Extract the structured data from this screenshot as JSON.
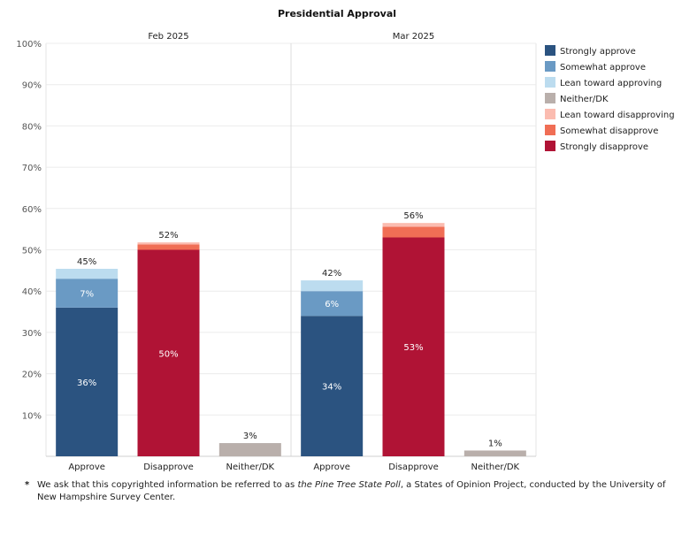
{
  "chart_data": {
    "type": "bar",
    "stacked": true,
    "title": "Presidential Approval",
    "panels": [
      "Feb 2025",
      "Mar 2025"
    ],
    "categories": [
      "Approve",
      "Disapprove",
      "Neither/DK"
    ],
    "ylim": [
      0,
      100
    ],
    "yticks": [
      10,
      20,
      30,
      40,
      50,
      60,
      70,
      80,
      90,
      100
    ],
    "ytick_labels": [
      "10%",
      "20%",
      "30%",
      "40%",
      "50%",
      "60%",
      "70%",
      "80%",
      "90%",
      "100%"
    ],
    "legend": [
      {
        "name": "Strongly approve",
        "color": "#2b5380"
      },
      {
        "name": "Somewhat approve",
        "color": "#6a9ac4"
      },
      {
        "name": "Lean toward approving",
        "color": "#bcdcef"
      },
      {
        "name": "Neither/DK",
        "color": "#b9afab"
      },
      {
        "name": "Lean toward disapproving",
        "color": "#fbbcb0"
      },
      {
        "name": "Somewhat disapprove",
        "color": "#f06e55"
      },
      {
        "name": "Strongly disapprove",
        "color": "#b01335"
      }
    ],
    "bars": [
      {
        "panel": 0,
        "category": "Approve",
        "total_label": "45%",
        "segments": [
          {
            "series": "Strongly approve",
            "value": 36,
            "label": "36%"
          },
          {
            "series": "Somewhat approve",
            "value": 7,
            "label": "7%"
          },
          {
            "series": "Lean toward approving",
            "value": 2.4,
            "label": ""
          }
        ]
      },
      {
        "panel": 0,
        "category": "Disapprove",
        "total_label": "52%",
        "segments": [
          {
            "series": "Strongly disapprove",
            "value": 50,
            "label": "50%"
          },
          {
            "series": "Somewhat disapprove",
            "value": 1.3,
            "label": ""
          },
          {
            "series": "Lean toward disapproving",
            "value": 0.5,
            "label": ""
          }
        ]
      },
      {
        "panel": 0,
        "category": "Neither/DK",
        "total_label": "3%",
        "segments": [
          {
            "series": "Neither/DK",
            "value": 3.2,
            "label": ""
          }
        ]
      },
      {
        "panel": 1,
        "category": "Approve",
        "total_label": "42%",
        "segments": [
          {
            "series": "Strongly approve",
            "value": 34,
            "label": "34%"
          },
          {
            "series": "Somewhat approve",
            "value": 6,
            "label": "6%"
          },
          {
            "series": "Lean toward approving",
            "value": 2.6,
            "label": ""
          }
        ]
      },
      {
        "panel": 1,
        "category": "Disapprove",
        "total_label": "56%",
        "segments": [
          {
            "series": "Strongly disapprove",
            "value": 53,
            "label": "53%"
          },
          {
            "series": "Somewhat disapprove",
            "value": 2.6,
            "label": ""
          },
          {
            "series": "Lean toward disapproving",
            "value": 0.9,
            "label": ""
          }
        ]
      },
      {
        "panel": 1,
        "category": "Neither/DK",
        "total_label": "1%",
        "segments": [
          {
            "series": "Neither/DK",
            "value": 1.4,
            "label": ""
          }
        ]
      }
    ]
  },
  "footnote": {
    "marker": "*",
    "before": "We ask that this copyrighted information be referred to as ",
    "italic": "the Pine Tree State Poll",
    "after": ", a States of Opinion Project, conducted by the University of New Hampshire Survey Center."
  }
}
